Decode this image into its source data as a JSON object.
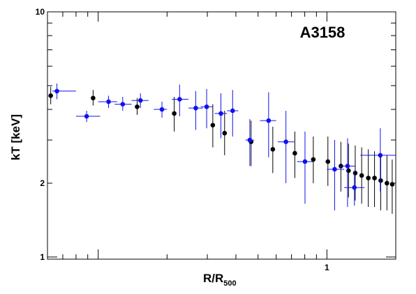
{
  "chart_data": {
    "type": "scatter",
    "title": "A3158",
    "xlabel": {
      "main": "R/R",
      "sub": "500"
    },
    "ylabel": "kT [keV]",
    "xscale": "log",
    "yscale": "log",
    "xlim": [
      0.06,
      2.0
    ],
    "ylim": [
      0.98,
      10
    ],
    "ytick_labels": [
      {
        "value": 1,
        "label": "1"
      },
      {
        "value": 2,
        "label": "2"
      },
      {
        "value": 10,
        "label": "10"
      }
    ],
    "xtick_labels": [
      {
        "value": 1,
        "label": "1"
      }
    ],
    "grid": false,
    "series": [
      {
        "color": "#000000",
        "points": [
          {
            "x": 0.062,
            "y": 4.55,
            "ylo": 4.2,
            "yhi": 4.95
          },
          {
            "x": 0.095,
            "y": 4.45,
            "ylo": 4.15,
            "yhi": 4.8
          },
          {
            "x": 0.148,
            "y": 4.1,
            "ylo": 3.8,
            "yhi": 4.45
          },
          {
            "x": 0.215,
            "y": 3.85,
            "ylo": 3.25,
            "yhi": 4.5
          },
          {
            "x": 0.317,
            "y": 3.45,
            "ylo": 2.8,
            "yhi": 4.2
          },
          {
            "x": 0.357,
            "y": 3.2,
            "ylo": 2.6,
            "yhi": 3.95
          },
          {
            "x": 0.466,
            "y": 2.95,
            "ylo": 2.35,
            "yhi": 3.6
          },
          {
            "x": 0.58,
            "y": 2.75,
            "ylo": 2.2,
            "yhi": 3.4
          },
          {
            "x": 0.724,
            "y": 2.65,
            "ylo": 2.1,
            "yhi": 3.25
          },
          {
            "x": 0.872,
            "y": 2.5,
            "ylo": 2.0,
            "yhi": 3.1
          },
          {
            "x": 1.01,
            "y": 2.45,
            "ylo": 1.95,
            "yhi": 3.1
          },
          {
            "x": 1.151,
            "y": 2.35,
            "ylo": 1.85,
            "yhi": 2.95
          },
          {
            "x": 1.243,
            "y": 2.25,
            "ylo": 1.75,
            "yhi": 2.9
          },
          {
            "x": 1.33,
            "y": 2.2,
            "ylo": 1.7,
            "yhi": 2.85
          },
          {
            "x": 1.419,
            "y": 2.15,
            "ylo": 1.65,
            "yhi": 2.8
          },
          {
            "x": 1.517,
            "y": 2.1,
            "ylo": 1.6,
            "yhi": 2.75
          },
          {
            "x": 1.615,
            "y": 2.1,
            "ylo": 1.6,
            "yhi": 2.7
          },
          {
            "x": 1.719,
            "y": 2.05,
            "ylo": 1.55,
            "yhi": 2.65
          },
          {
            "x": 1.83,
            "y": 2.0,
            "ylo": 1.55,
            "yhi": 2.6
          },
          {
            "x": 1.93,
            "y": 1.98,
            "ylo": 1.5,
            "yhi": 2.5
          }
        ]
      },
      {
        "color": "#1010ee",
        "points": [
          {
            "x": 0.066,
            "y": 4.75,
            "ylo": 4.4,
            "yhi": 5.1,
            "xlo": 0.063,
            "xhi": 0.08
          },
          {
            "x": 0.089,
            "y": 3.75,
            "ylo": 3.55,
            "yhi": 3.95,
            "xlo": 0.08,
            "xhi": 0.102
          },
          {
            "x": 0.111,
            "y": 4.3,
            "ylo": 4.05,
            "yhi": 4.55,
            "xlo": 0.1,
            "xhi": 0.121
          },
          {
            "x": 0.128,
            "y": 4.2,
            "ylo": 3.95,
            "yhi": 4.5,
            "xlo": 0.118,
            "xhi": 0.14
          },
          {
            "x": 0.153,
            "y": 4.35,
            "ylo": 4.05,
            "yhi": 4.65,
            "xlo": 0.14,
            "xhi": 0.166
          },
          {
            "x": 0.19,
            "y": 4.0,
            "ylo": 3.7,
            "yhi": 4.3,
            "xlo": 0.175,
            "xhi": 0.2
          },
          {
            "x": 0.227,
            "y": 4.4,
            "ylo": 3.75,
            "yhi": 5.05,
            "xlo": 0.21,
            "xhi": 0.248
          },
          {
            "x": 0.267,
            "y": 4.05,
            "ylo": 3.3,
            "yhi": 4.75,
            "xlo": 0.248,
            "xhi": 0.287
          },
          {
            "x": 0.298,
            "y": 4.1,
            "ylo": 3.35,
            "yhi": 4.85,
            "xlo": 0.281,
            "xhi": 0.317
          },
          {
            "x": 0.344,
            "y": 3.85,
            "ylo": 3.05,
            "yhi": 4.65,
            "xlo": 0.323,
            "xhi": 0.366
          },
          {
            "x": 0.387,
            "y": 3.95,
            "ylo": 3.1,
            "yhi": 4.8,
            "xlo": 0.366,
            "xhi": 0.41
          },
          {
            "x": 0.46,
            "y": 3.0,
            "ylo": 2.35,
            "yhi": 3.65,
            "xlo": 0.44,
            "xhi": 0.48
          },
          {
            "x": 0.556,
            "y": 3.6,
            "ylo": 2.55,
            "yhi": 4.7,
            "xlo": 0.51,
            "xhi": 0.6
          },
          {
            "x": 0.662,
            "y": 2.95,
            "ylo": 2.0,
            "yhi": 3.95,
            "xlo": 0.61,
            "xhi": 0.72
          },
          {
            "x": 0.802,
            "y": 2.45,
            "ylo": 1.65,
            "yhi": 3.25,
            "xlo": 0.74,
            "xhi": 0.87
          },
          {
            "x": 1.081,
            "y": 2.28,
            "ylo": 1.55,
            "yhi": 3.0,
            "xlo": 1.0,
            "xhi": 1.19
          },
          {
            "x": 1.231,
            "y": 2.35,
            "ylo": 1.6,
            "yhi": 3.05,
            "xlo": 1.13,
            "xhi": 1.33
          },
          {
            "x": 1.319,
            "y": 1.92,
            "ylo": 1.62,
            "yhi": 2.25,
            "xlo": 1.19,
            "xhi": 1.46
          },
          {
            "x": 1.712,
            "y": 2.6,
            "ylo": 1.85,
            "yhi": 3.35,
            "xlo": 1.4,
            "xhi": 2.0
          }
        ]
      }
    ]
  }
}
